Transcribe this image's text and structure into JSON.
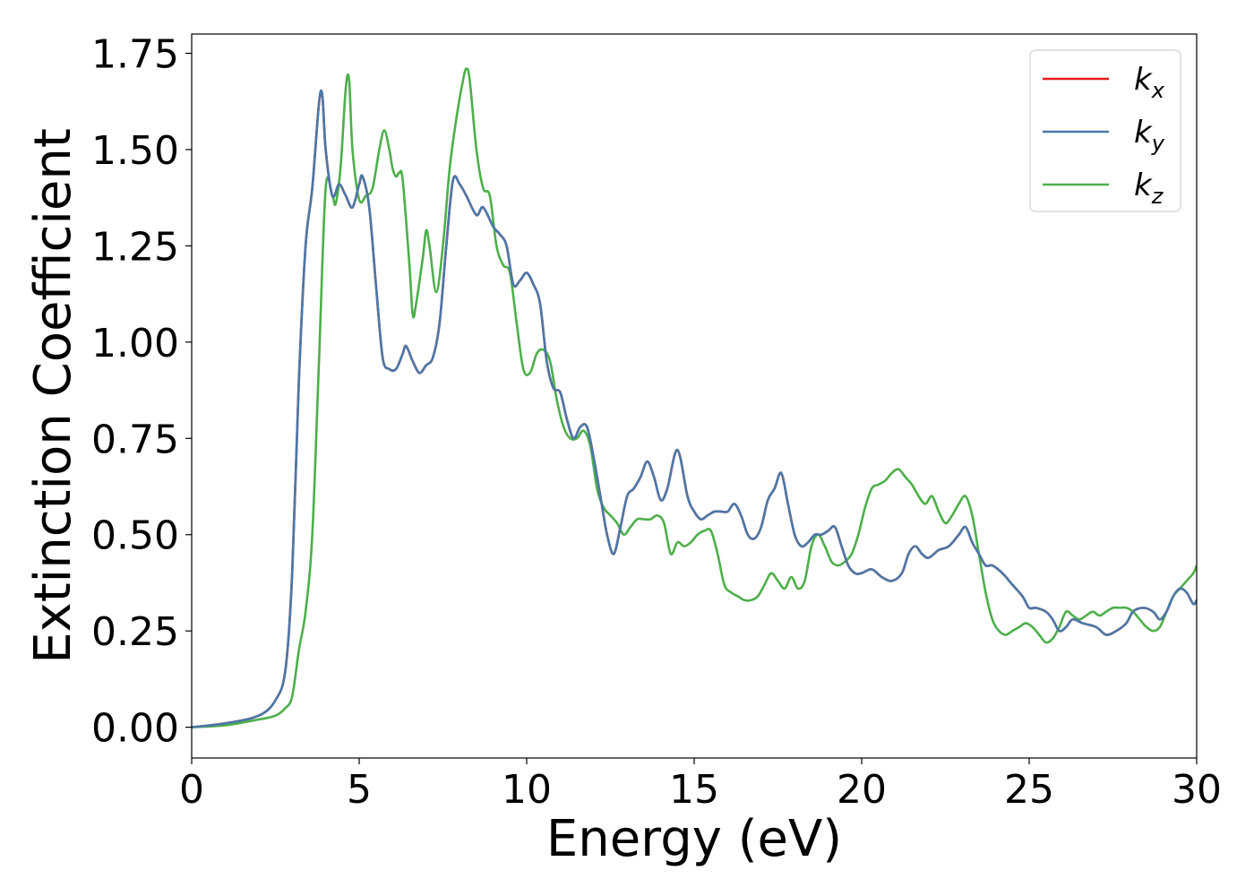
{
  "chart_data": {
    "type": "line",
    "title": "",
    "xlabel": "Energy (eV)",
    "ylabel": "Extinction Coefficient",
    "xlim": [
      0,
      30
    ],
    "ylim": [
      -0.08,
      1.8
    ],
    "x_ticks": [
      0,
      5,
      10,
      15,
      20,
      25,
      30
    ],
    "y_ticks": [
      0.0,
      0.25,
      0.5,
      0.75,
      1.0,
      1.25,
      1.5,
      1.75
    ],
    "x_tick_labels": [
      "0",
      "5",
      "10",
      "15",
      "20",
      "25",
      "30"
    ],
    "y_tick_labels": [
      "0.00",
      "0.25",
      "0.50",
      "0.75",
      "1.00",
      "1.25",
      "1.50",
      "1.75"
    ],
    "grid": false,
    "legend_position": "top-right",
    "series": [
      {
        "name": "k_x",
        "legend_base": "k",
        "legend_sub": "x",
        "color": "#e41a1c",
        "x": [
          0,
          1.0,
          2.0,
          2.5,
          2.8,
          3.0,
          3.2,
          3.4,
          3.6,
          3.8,
          3.9,
          4.0,
          4.2,
          4.4,
          4.6,
          4.8,
          5.0,
          5.1,
          5.3,
          5.5,
          5.7,
          5.9,
          6.1,
          6.3,
          6.4,
          6.6,
          6.8,
          7.0,
          7.2,
          7.4,
          7.6,
          7.8,
          8.0,
          8.2,
          8.5,
          8.7,
          9.0,
          9.2,
          9.4,
          9.6,
          9.8,
          10.0,
          10.2,
          10.4,
          10.6,
          10.8,
          11.0,
          11.2,
          11.4,
          11.6,
          11.8,
          12.0,
          12.2,
          12.4,
          12.6,
          12.8,
          13.0,
          13.2,
          13.4,
          13.6,
          13.8,
          14.0,
          14.2,
          14.5,
          14.8,
          15.0,
          15.2,
          15.4,
          15.6,
          15.8,
          16.0,
          16.2,
          16.4,
          16.6,
          16.8,
          17.0,
          17.2,
          17.4,
          17.6,
          17.8,
          18.0,
          18.2,
          18.4,
          18.6,
          18.8,
          19.0,
          19.2,
          19.4,
          19.6,
          19.8,
          20.0,
          20.3,
          20.6,
          20.9,
          21.2,
          21.4,
          21.6,
          21.8,
          22.0,
          22.3,
          22.6,
          22.9,
          23.1,
          23.3,
          23.5,
          23.7,
          23.9,
          24.2,
          24.5,
          24.8,
          25.0,
          25.2,
          25.5,
          25.7,
          25.9,
          26.1,
          26.3,
          26.6,
          27.0,
          27.3,
          27.6,
          27.9,
          28.1,
          28.4,
          28.7,
          28.9,
          29.1,
          29.3,
          29.5,
          29.7,
          29.9,
          30.0
        ],
        "y": [
          0.0,
          0.01,
          0.03,
          0.07,
          0.15,
          0.4,
          0.9,
          1.25,
          1.4,
          1.62,
          1.64,
          1.5,
          1.38,
          1.41,
          1.38,
          1.35,
          1.41,
          1.43,
          1.35,
          1.15,
          0.96,
          0.93,
          0.93,
          0.97,
          0.99,
          0.95,
          0.92,
          0.94,
          0.96,
          1.05,
          1.25,
          1.42,
          1.41,
          1.38,
          1.33,
          1.35,
          1.3,
          1.28,
          1.25,
          1.15,
          1.16,
          1.18,
          1.15,
          1.1,
          0.95,
          0.88,
          0.87,
          0.8,
          0.75,
          0.78,
          0.78,
          0.7,
          0.6,
          0.5,
          0.45,
          0.52,
          0.6,
          0.62,
          0.65,
          0.69,
          0.65,
          0.59,
          0.62,
          0.72,
          0.6,
          0.56,
          0.54,
          0.55,
          0.56,
          0.56,
          0.56,
          0.58,
          0.55,
          0.5,
          0.49,
          0.52,
          0.59,
          0.62,
          0.66,
          0.58,
          0.5,
          0.47,
          0.48,
          0.5,
          0.5,
          0.51,
          0.52,
          0.47,
          0.42,
          0.4,
          0.4,
          0.41,
          0.39,
          0.38,
          0.4,
          0.45,
          0.47,
          0.45,
          0.44,
          0.46,
          0.47,
          0.5,
          0.52,
          0.48,
          0.45,
          0.42,
          0.42,
          0.4,
          0.37,
          0.34,
          0.31,
          0.31,
          0.3,
          0.28,
          0.25,
          0.26,
          0.28,
          0.27,
          0.26,
          0.24,
          0.25,
          0.27,
          0.3,
          0.31,
          0.3,
          0.28,
          0.3,
          0.34,
          0.36,
          0.35,
          0.32,
          0.33
        ]
      },
      {
        "name": "k_y",
        "legend_base": "k",
        "legend_sub": "y",
        "color": "#4a78a8",
        "x": [
          0,
          1.0,
          2.0,
          2.5,
          2.8,
          3.0,
          3.2,
          3.4,
          3.6,
          3.8,
          3.9,
          4.0,
          4.2,
          4.4,
          4.6,
          4.8,
          5.0,
          5.1,
          5.3,
          5.5,
          5.7,
          5.9,
          6.1,
          6.3,
          6.4,
          6.6,
          6.8,
          7.0,
          7.2,
          7.4,
          7.6,
          7.8,
          8.0,
          8.2,
          8.5,
          8.7,
          9.0,
          9.2,
          9.4,
          9.6,
          9.8,
          10.0,
          10.2,
          10.4,
          10.6,
          10.8,
          11.0,
          11.2,
          11.4,
          11.6,
          11.8,
          12.0,
          12.2,
          12.4,
          12.6,
          12.8,
          13.0,
          13.2,
          13.4,
          13.6,
          13.8,
          14.0,
          14.2,
          14.5,
          14.8,
          15.0,
          15.2,
          15.4,
          15.6,
          15.8,
          16.0,
          16.2,
          16.4,
          16.6,
          16.8,
          17.0,
          17.2,
          17.4,
          17.6,
          17.8,
          18.0,
          18.2,
          18.4,
          18.6,
          18.8,
          19.0,
          19.2,
          19.4,
          19.6,
          19.8,
          20.0,
          20.3,
          20.6,
          20.9,
          21.2,
          21.4,
          21.6,
          21.8,
          22.0,
          22.3,
          22.6,
          22.9,
          23.1,
          23.3,
          23.5,
          23.7,
          23.9,
          24.2,
          24.5,
          24.8,
          25.0,
          25.2,
          25.5,
          25.7,
          25.9,
          26.1,
          26.3,
          26.6,
          27.0,
          27.3,
          27.6,
          27.9,
          28.1,
          28.4,
          28.7,
          28.9,
          29.1,
          29.3,
          29.5,
          29.7,
          29.9,
          30.0
        ],
        "y": [
          0.0,
          0.01,
          0.03,
          0.07,
          0.15,
          0.4,
          0.9,
          1.25,
          1.4,
          1.62,
          1.64,
          1.5,
          1.38,
          1.41,
          1.38,
          1.35,
          1.41,
          1.43,
          1.35,
          1.15,
          0.96,
          0.93,
          0.93,
          0.97,
          0.99,
          0.95,
          0.92,
          0.94,
          0.96,
          1.05,
          1.25,
          1.42,
          1.41,
          1.38,
          1.33,
          1.35,
          1.3,
          1.28,
          1.25,
          1.15,
          1.16,
          1.18,
          1.15,
          1.1,
          0.95,
          0.88,
          0.87,
          0.8,
          0.75,
          0.78,
          0.78,
          0.7,
          0.6,
          0.5,
          0.45,
          0.52,
          0.6,
          0.62,
          0.65,
          0.69,
          0.65,
          0.59,
          0.62,
          0.72,
          0.6,
          0.56,
          0.54,
          0.55,
          0.56,
          0.56,
          0.56,
          0.58,
          0.55,
          0.5,
          0.49,
          0.52,
          0.59,
          0.62,
          0.66,
          0.58,
          0.5,
          0.47,
          0.48,
          0.5,
          0.5,
          0.51,
          0.52,
          0.47,
          0.42,
          0.4,
          0.4,
          0.41,
          0.39,
          0.38,
          0.4,
          0.45,
          0.47,
          0.45,
          0.44,
          0.46,
          0.47,
          0.5,
          0.52,
          0.48,
          0.45,
          0.42,
          0.42,
          0.4,
          0.37,
          0.34,
          0.31,
          0.31,
          0.3,
          0.28,
          0.25,
          0.26,
          0.28,
          0.27,
          0.26,
          0.24,
          0.25,
          0.27,
          0.3,
          0.31,
          0.3,
          0.28,
          0.3,
          0.34,
          0.36,
          0.35,
          0.32,
          0.33
        ]
      },
      {
        "name": "k_z",
        "legend_base": "k",
        "legend_sub": "z",
        "color": "#4daf4a",
        "x": [
          0,
          1.0,
          2.0,
          2.5,
          2.8,
          3.0,
          3.2,
          3.4,
          3.6,
          3.8,
          4.0,
          4.2,
          4.3,
          4.45,
          4.6,
          4.7,
          4.8,
          5.0,
          5.2,
          5.4,
          5.6,
          5.75,
          5.9,
          6.0,
          6.1,
          6.2,
          6.3,
          6.5,
          6.6,
          6.7,
          6.9,
          7.0,
          7.1,
          7.3,
          7.5,
          7.7,
          7.9,
          8.1,
          8.2,
          8.3,
          8.5,
          8.7,
          8.9,
          9.1,
          9.3,
          9.5,
          9.7,
          9.9,
          10.1,
          10.3,
          10.5,
          10.7,
          10.9,
          11.1,
          11.3,
          11.5,
          11.7,
          11.9,
          12.1,
          12.3,
          12.5,
          12.7,
          12.9,
          13.1,
          13.3,
          13.5,
          13.7,
          13.9,
          14.1,
          14.3,
          14.5,
          14.7,
          14.9,
          15.1,
          15.3,
          15.5,
          15.7,
          15.9,
          16.1,
          16.3,
          16.5,
          16.7,
          16.9,
          17.1,
          17.3,
          17.5,
          17.7,
          17.9,
          18.1,
          18.3,
          18.5,
          18.7,
          18.9,
          19.1,
          19.3,
          19.5,
          19.7,
          19.9,
          20.1,
          20.3,
          20.5,
          20.7,
          20.9,
          21.1,
          21.3,
          21.5,
          21.7,
          21.9,
          22.1,
          22.3,
          22.5,
          22.7,
          22.9,
          23.1,
          23.3,
          23.5,
          23.7,
          23.9,
          24.1,
          24.3,
          24.5,
          24.7,
          24.9,
          25.1,
          25.3,
          25.5,
          25.7,
          25.9,
          26.1,
          26.3,
          26.5,
          26.7,
          26.9,
          27.1,
          27.3,
          27.5,
          27.7,
          27.9,
          28.1,
          28.3,
          28.5,
          28.7,
          28.9,
          29.1,
          29.3,
          29.5,
          29.7,
          29.9,
          30.0
        ],
        "y": [
          0.0,
          0.005,
          0.02,
          0.03,
          0.05,
          0.08,
          0.2,
          0.3,
          0.5,
          0.95,
          1.4,
          1.38,
          1.36,
          1.46,
          1.66,
          1.68,
          1.5,
          1.37,
          1.38,
          1.4,
          1.5,
          1.55,
          1.5,
          1.45,
          1.43,
          1.44,
          1.42,
          1.2,
          1.07,
          1.1,
          1.22,
          1.29,
          1.25,
          1.13,
          1.25,
          1.45,
          1.58,
          1.68,
          1.71,
          1.68,
          1.5,
          1.4,
          1.38,
          1.25,
          1.2,
          1.18,
          1.05,
          0.93,
          0.92,
          0.97,
          0.98,
          0.95,
          0.85,
          0.78,
          0.75,
          0.75,
          0.77,
          0.73,
          0.62,
          0.57,
          0.55,
          0.53,
          0.5,
          0.52,
          0.54,
          0.54,
          0.54,
          0.55,
          0.53,
          0.45,
          0.48,
          0.47,
          0.48,
          0.5,
          0.51,
          0.51,
          0.45,
          0.37,
          0.35,
          0.34,
          0.33,
          0.33,
          0.34,
          0.37,
          0.4,
          0.38,
          0.36,
          0.39,
          0.36,
          0.38,
          0.47,
          0.5,
          0.47,
          0.43,
          0.42,
          0.43,
          0.45,
          0.5,
          0.57,
          0.62,
          0.63,
          0.64,
          0.66,
          0.67,
          0.65,
          0.63,
          0.6,
          0.58,
          0.6,
          0.56,
          0.53,
          0.55,
          0.58,
          0.6,
          0.55,
          0.45,
          0.35,
          0.28,
          0.25,
          0.24,
          0.25,
          0.26,
          0.27,
          0.26,
          0.24,
          0.22,
          0.23,
          0.26,
          0.3,
          0.29,
          0.28,
          0.29,
          0.3,
          0.29,
          0.3,
          0.31,
          0.31,
          0.31,
          0.3,
          0.28,
          0.26,
          0.25,
          0.26,
          0.3,
          0.34,
          0.36,
          0.38,
          0.4,
          0.42
        ]
      }
    ]
  }
}
